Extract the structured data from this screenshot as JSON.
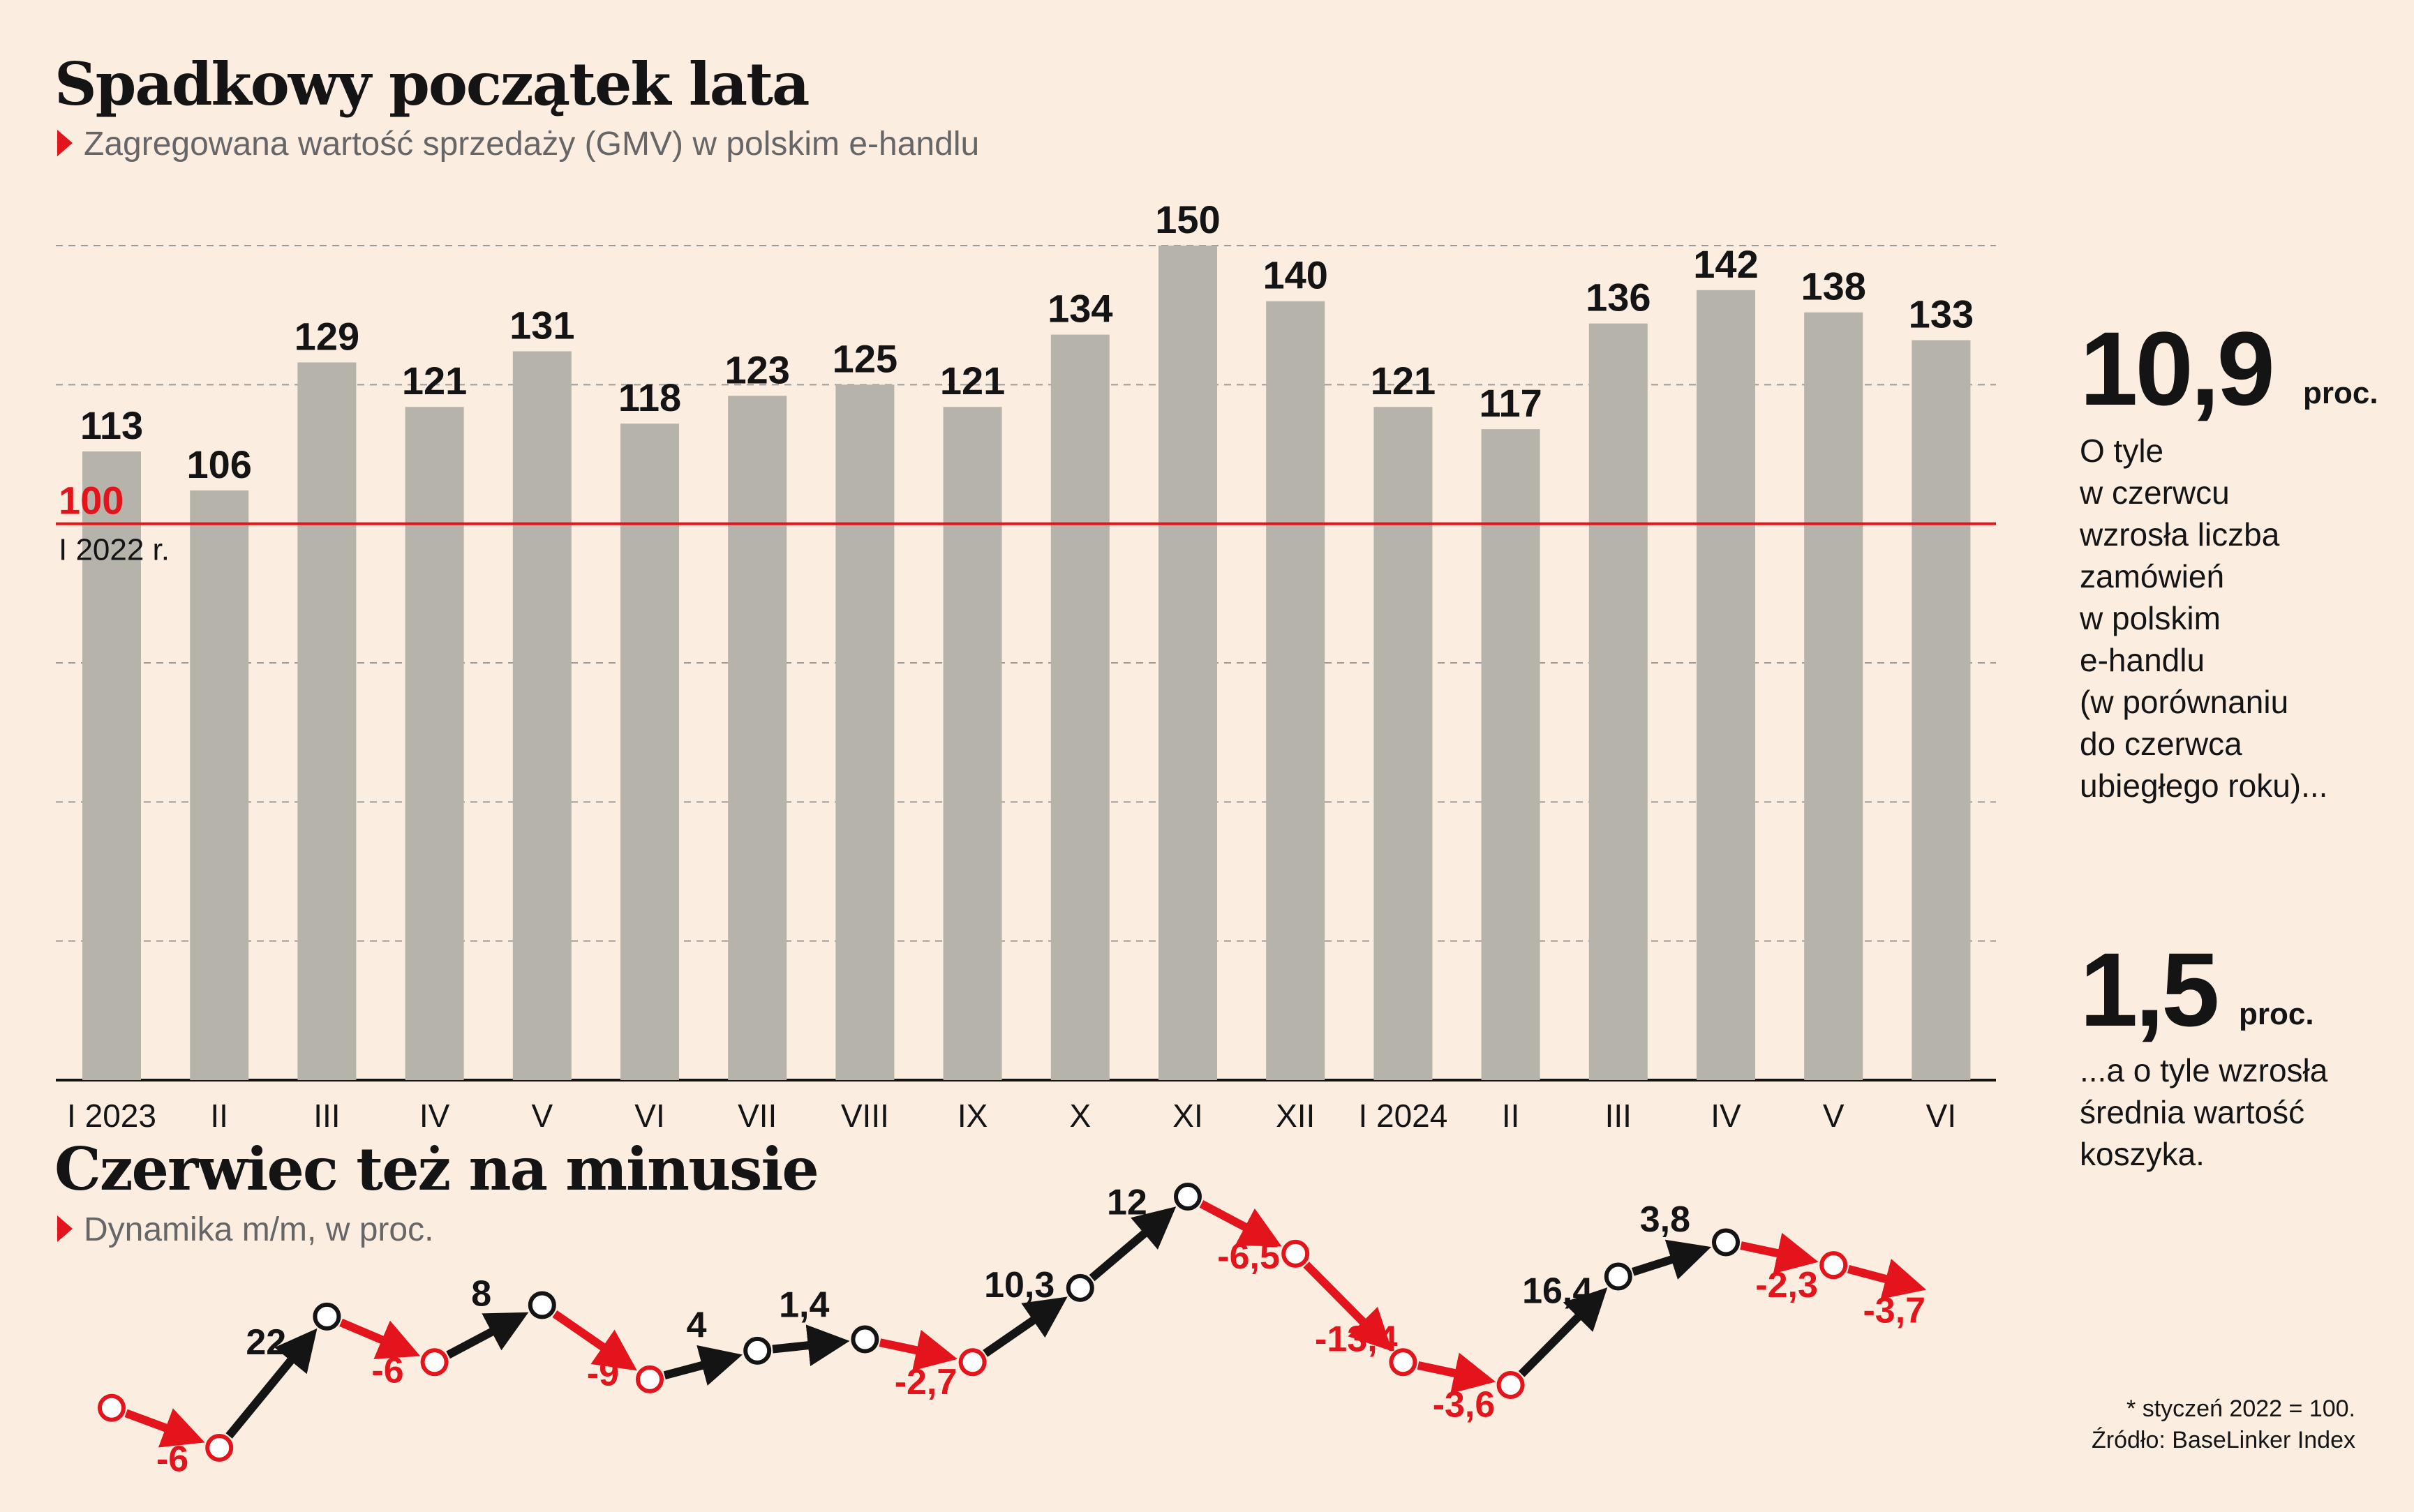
{
  "colors": {
    "background": "#fbeee1",
    "bar": "#b5b3aa",
    "accent_red": "#e3141b",
    "dark": "#141414",
    "grid": "#9a9a9a",
    "subtitle_gray": "#666666"
  },
  "chart_data": [
    {
      "type": "bar",
      "title": "Spadkowy początek lata",
      "subtitle": "Zagregowana wartość sprzedaży (GMV) w polskim e-handlu",
      "categories": [
        "I 2023",
        "II",
        "III",
        "IV",
        "V",
        "VI",
        "VII",
        "VIII",
        "IX",
        "X",
        "XI",
        "XII",
        "I 2024",
        "II",
        "III",
        "IV",
        "V",
        "VI"
      ],
      "values": [
        113,
        106,
        129,
        121,
        131,
        118,
        123,
        125,
        121,
        134,
        150,
        140,
        121,
        117,
        136,
        142,
        138,
        133
      ],
      "ylim": [
        0,
        150
      ],
      "grid": true,
      "reference": {
        "value": 100,
        "label": "100",
        "note": "I 2022 r."
      }
    },
    {
      "type": "line",
      "title": "Czerwiec też na minusie",
      "subtitle": "Dynamika m/m, w proc.",
      "categories": [
        "I 2023",
        "II",
        "III",
        "IV",
        "V",
        "VI",
        "VII",
        "VIII",
        "IX",
        "X",
        "XI",
        "XII",
        "I 2024",
        "II",
        "III",
        "IV",
        "V",
        "VI"
      ],
      "values": [
        -6,
        22,
        -6,
        8,
        -9,
        4,
        1.4,
        -2.7,
        10.3,
        12,
        -6.5,
        -13.4,
        -3.6,
        16.4,
        3.8,
        -2.3,
        -3.7
      ],
      "labels": [
        "-6",
        "22",
        "-6",
        "8",
        "-9",
        "4",
        "1,4",
        "-2,7",
        "10,3",
        "12",
        "-6,5",
        "-13,4",
        "-3,6",
        "16,4",
        "3,8",
        "-2,3",
        "-3,7"
      ]
    }
  ],
  "side": {
    "stat1_value": "10,9",
    "stat1_unit": "proc.",
    "stat1_lines": [
      "O tyle",
      "w czerwcu",
      "wzrosła liczba",
      "zamówień",
      "w polskim",
      "e-handlu",
      "(w porównaniu",
      "do czerwca",
      "ubiegłego roku)..."
    ],
    "stat2_value": "1,5",
    "stat2_unit": "proc.",
    "stat2_lines": [
      "...a o tyle wzrosła",
      "średnia wartość",
      "koszyka."
    ]
  },
  "footnote": {
    "line1": "* styczeń 2022 = 100.",
    "line2": "Źródło: BaseLinker Index"
  }
}
